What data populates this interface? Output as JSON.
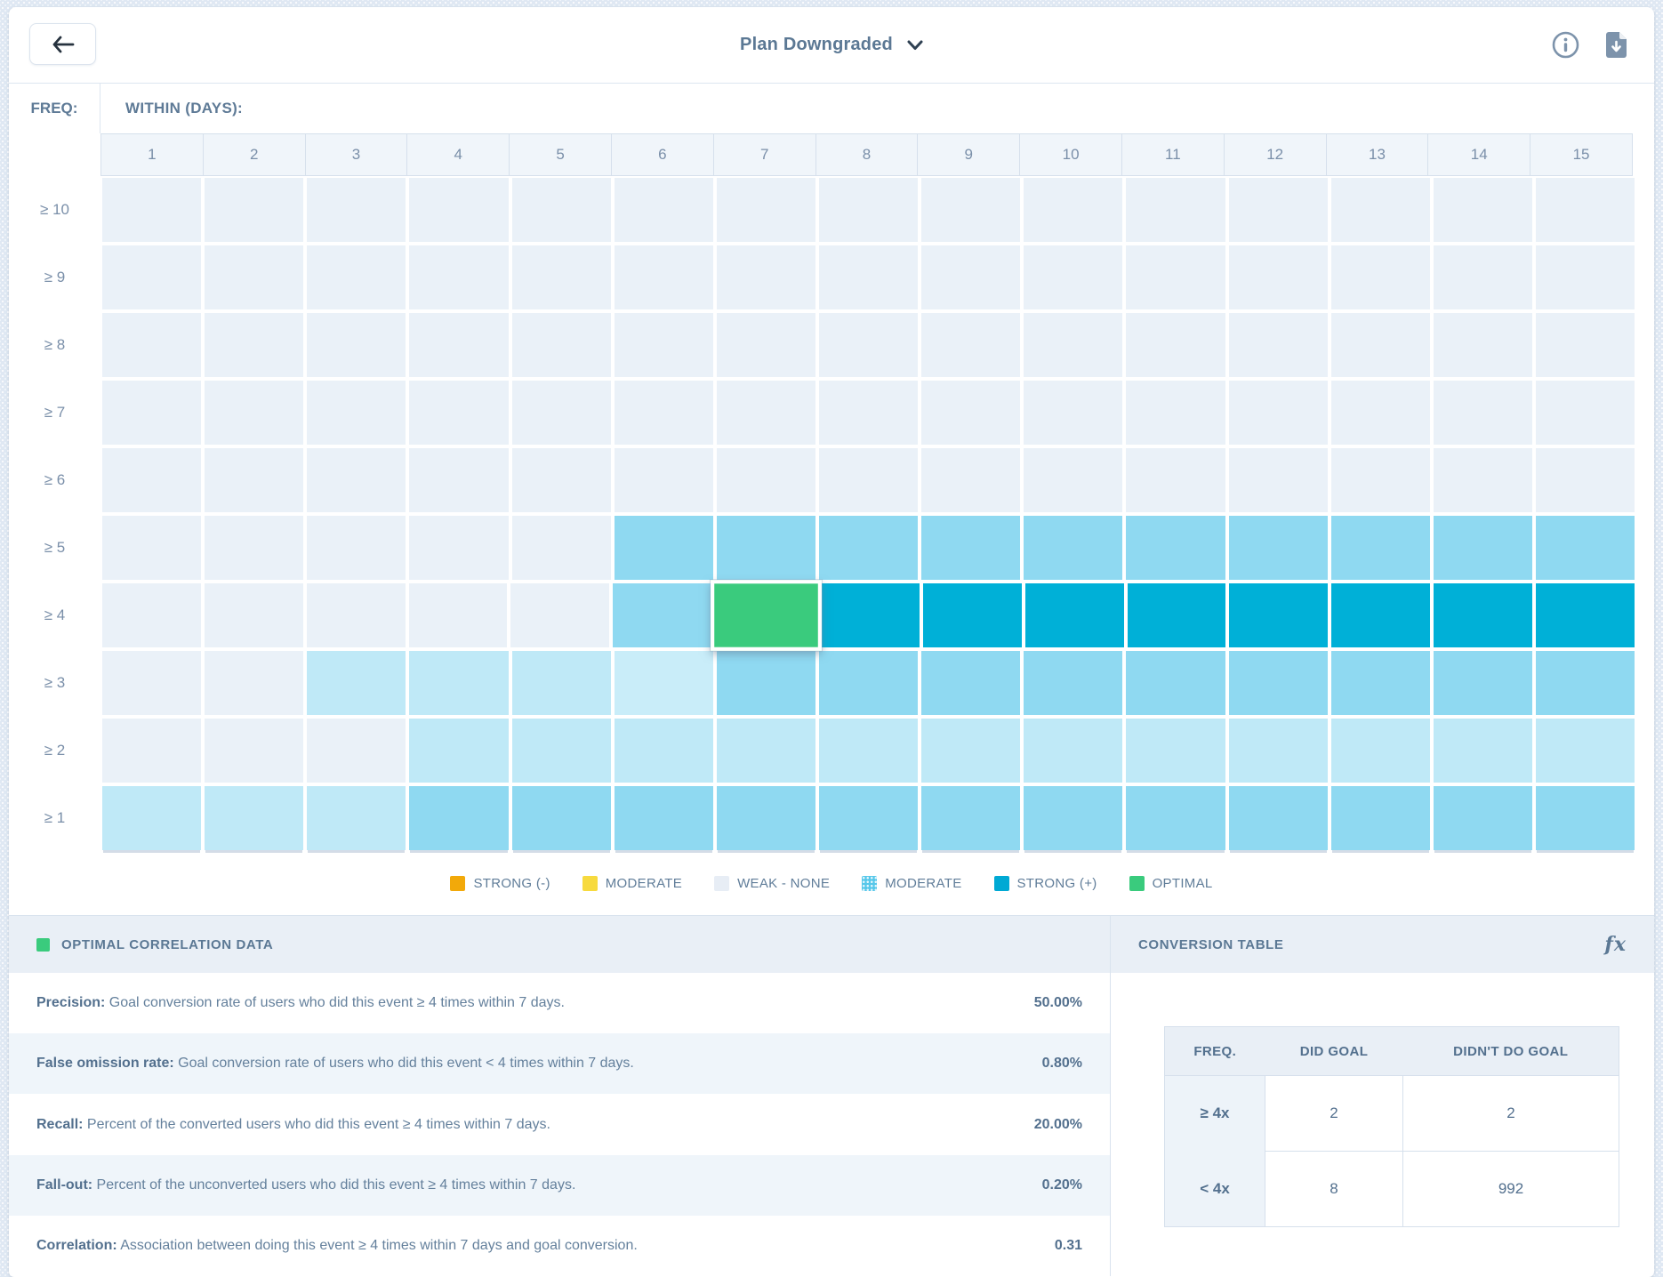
{
  "header": {
    "title": "Plan Downgraded"
  },
  "heatmap": {
    "freq_label": "FREQ:",
    "within_label": "WITHIN (DAYS):",
    "columns": [
      "1",
      "2",
      "3",
      "4",
      "5",
      "6",
      "7",
      "8",
      "9",
      "10",
      "11",
      "12",
      "13",
      "14",
      "15"
    ],
    "palette": {
      "W": "#EAF1F8",
      "L": "#BFE9F7",
      "L1": "#C9EDF9",
      "M": "#8FD9F1",
      "S": "#00B0D7",
      "G": "#3ACB7D"
    },
    "rows": [
      {
        "label": "≥ 10",
        "cells": [
          "W",
          "W",
          "W",
          "W",
          "W",
          "W",
          "W",
          "W",
          "W",
          "W",
          "W",
          "W",
          "W",
          "W",
          "W"
        ]
      },
      {
        "label": "≥ 9",
        "cells": [
          "W",
          "W",
          "W",
          "W",
          "W",
          "W",
          "W",
          "W",
          "W",
          "W",
          "W",
          "W",
          "W",
          "W",
          "W"
        ]
      },
      {
        "label": "≥ 8",
        "cells": [
          "W",
          "W",
          "W",
          "W",
          "W",
          "W",
          "W",
          "W",
          "W",
          "W",
          "W",
          "W",
          "W",
          "W",
          "W"
        ]
      },
      {
        "label": "≥ 7",
        "cells": [
          "W",
          "W",
          "W",
          "W",
          "W",
          "W",
          "W",
          "W",
          "W",
          "W",
          "W",
          "W",
          "W",
          "W",
          "W"
        ]
      },
      {
        "label": "≥ 6",
        "cells": [
          "W",
          "W",
          "W",
          "W",
          "W",
          "W",
          "W",
          "W",
          "W",
          "W",
          "W",
          "W",
          "W",
          "W",
          "W"
        ]
      },
      {
        "label": "≥ 5",
        "cells": [
          "W",
          "W",
          "W",
          "W",
          "W",
          "M",
          "M",
          "M",
          "M",
          "M",
          "M",
          "M",
          "M",
          "M",
          "M"
        ]
      },
      {
        "label": "≥ 4",
        "cells": [
          "W",
          "W",
          "W",
          "W",
          "W",
          "M",
          "G",
          "S",
          "S",
          "S",
          "S",
          "S",
          "S",
          "S",
          "S"
        ]
      },
      {
        "label": "≥ 3",
        "cells": [
          "W",
          "W",
          "L",
          "L",
          "L",
          "L1",
          "M",
          "M",
          "M",
          "M",
          "M",
          "M",
          "M",
          "M",
          "M"
        ]
      },
      {
        "label": "≥ 2",
        "cells": [
          "W",
          "W",
          "W",
          "L",
          "L",
          "L",
          "L",
          "L",
          "L",
          "L",
          "L",
          "L",
          "L",
          "L",
          "L"
        ]
      },
      {
        "label": "≥ 1",
        "cells": [
          "L",
          "L",
          "L",
          "M",
          "M",
          "M",
          "M",
          "M",
          "M",
          "M",
          "M",
          "M",
          "M",
          "M",
          "M"
        ]
      }
    ],
    "selected_cell": {
      "row": "≥ 4",
      "column": "7"
    }
  },
  "legend": [
    {
      "label": "STRONG (-)",
      "color": "#F2A90A",
      "dotted": false
    },
    {
      "label": "MODERATE",
      "color": "#F7DA3E",
      "dotted": false
    },
    {
      "label": "WEAK - NONE",
      "color": "#E7EDF5",
      "dotted": false
    },
    {
      "label": "MODERATE",
      "color": "#58C8EA",
      "dotted": true
    },
    {
      "label": "STRONG (+)",
      "color": "#00A9D4",
      "dotted": false
    },
    {
      "label": "OPTIMAL",
      "color": "#3ACB7D",
      "dotted": false
    }
  ],
  "optimal_panel": {
    "title": "OPTIMAL CORRELATION DATA",
    "swatch_color": "#3ACB7D",
    "rows": [
      {
        "label": "Precision:",
        "desc": " Goal conversion rate of users who did this event ≥ 4 times within 7 days.",
        "value": "50.00%"
      },
      {
        "label": "False omission rate:",
        "desc": " Goal conversion rate of users who did this event < 4 times within 7 days.",
        "value": "0.80%"
      },
      {
        "label": "Recall:",
        "desc": " Percent of the converted users who did this event ≥ 4 times within 7 days.",
        "value": "20.00%"
      },
      {
        "label": "Fall-out:",
        "desc": " Percent of the unconverted users who did this event ≥ 4 times within 7 days.",
        "value": "0.20%"
      },
      {
        "label": "Correlation:",
        "desc": " Association between doing this event ≥ 4 times within 7 days and goal conversion.",
        "value": "0.31"
      }
    ]
  },
  "conversion_panel": {
    "title": "CONVERSION TABLE",
    "fx_label": "fx",
    "headers": [
      "FREQ.",
      "DID GOAL",
      "DIDN'T DO GOAL"
    ],
    "rows": [
      {
        "freq": "≥ 4x",
        "did": "2",
        "didnt": "2"
      },
      {
        "freq": "< 4x",
        "did": "8",
        "didnt": "992"
      }
    ]
  }
}
